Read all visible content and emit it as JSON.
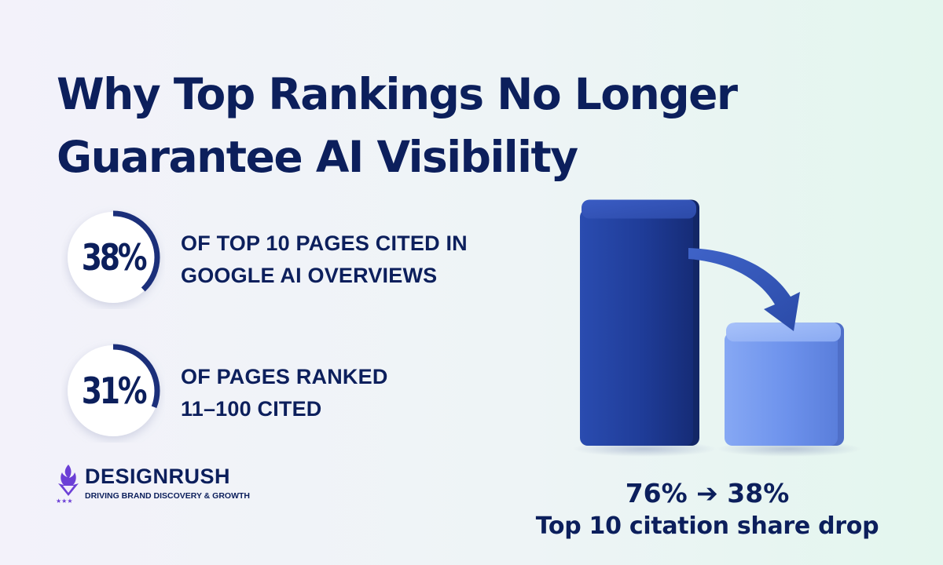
{
  "headline": {
    "line1": "Why Top Rankings No Longer",
    "line2": "Guarantee AI Visibility"
  },
  "stats": [
    {
      "value": "38%",
      "progress": 0.38,
      "line1": "OF TOP 10 PAGES CITED IN",
      "line2": "GOOGLE AI OVERVIEWS"
    },
    {
      "value": "31%",
      "progress": 0.31,
      "line1": "OF PAGES RANKED",
      "line2": "11–100 CITED"
    }
  ],
  "logo": {
    "brand": "DESIGNRUSH",
    "tagline": "DRIVING BRAND DISCOVERY & GROWTH",
    "mark_icon": "flame-diamond-icon"
  },
  "chart_data": {
    "type": "bar",
    "categories": [
      "",
      ""
    ],
    "values": [
      76,
      38
    ],
    "colors": [
      "#1e3a94",
      "#6f96ee"
    ],
    "ylim": [
      0,
      80
    ]
  },
  "caption": {
    "change": "76% ➔ 38%",
    "description": "Top 10 citation share drop"
  },
  "colors": {
    "navy": "#0c1f5c",
    "ring": "#1b2f7a",
    "bar_dark": "#1e3a94",
    "bar_light": "#6f96ee",
    "logo_purple": "#6b3fd6"
  }
}
